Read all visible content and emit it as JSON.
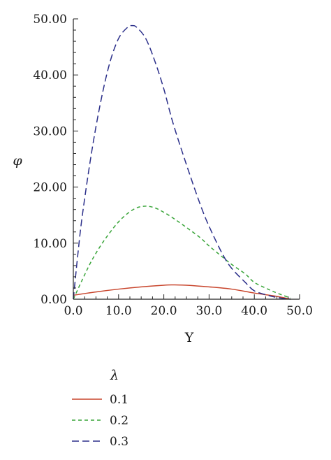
{
  "chart_data": {
    "type": "line",
    "title": "",
    "xlabel": "Y",
    "ylabel": "φ",
    "xlim": [
      0,
      50
    ],
    "ylim": [
      0,
      50
    ],
    "x_ticks": [
      0,
      10,
      20,
      30,
      40,
      50
    ],
    "x_tick_labels": [
      "0.0",
      "10.0",
      "20.0",
      "30.0",
      "40.0",
      "50.0"
    ],
    "y_ticks": [
      0,
      10,
      20,
      30,
      40,
      50
    ],
    "y_tick_labels": [
      "0.00",
      "10.00",
      "20.00",
      "30.00",
      "40.00",
      "50.00"
    ],
    "grid": false,
    "legend": {
      "title": "λ",
      "position": "bottom-left"
    },
    "series": [
      {
        "name": "0.1",
        "color": "#c8452c",
        "dash": "solid",
        "x": [
          0,
          5,
          10,
          15,
          20,
          22,
          25,
          30,
          35,
          40,
          45,
          48
        ],
        "y": [
          0.7,
          1.3,
          1.8,
          2.2,
          2.5,
          2.55,
          2.5,
          2.2,
          1.8,
          1.1,
          0.5,
          0.0
        ]
      },
      {
        "name": "0.2",
        "color": "#3aa53a",
        "dash": "short",
        "x": [
          0,
          2,
          4,
          6,
          8,
          10,
          12,
          14,
          16,
          18,
          20,
          22,
          25,
          28,
          30,
          33,
          35,
          38,
          40,
          43,
          45,
          48
        ],
        "y": [
          0,
          3.5,
          6.8,
          9.5,
          11.8,
          13.8,
          15.3,
          16.3,
          16.6,
          16.3,
          15.5,
          14.5,
          12.8,
          11.0,
          9.5,
          7.5,
          6.2,
          4.5,
          3.0,
          1.8,
          1.1,
          0.2
        ]
      },
      {
        "name": "0.3",
        "color": "#2b2f8a",
        "dash": "long",
        "x": [
          0,
          1,
          2,
          4,
          6,
          8,
          10,
          12,
          13,
          14,
          16,
          18,
          20,
          22,
          25,
          28,
          30,
          33,
          35,
          38,
          40,
          43,
          45,
          48
        ],
        "y": [
          0,
          8,
          15,
          26,
          35,
          42,
          46.5,
          48.5,
          48.8,
          48.5,
          46.5,
          42.5,
          37.5,
          31.5,
          24,
          17,
          13,
          8,
          5.5,
          3,
          1.5,
          0.7,
          0.3,
          0.0
        ]
      }
    ]
  }
}
